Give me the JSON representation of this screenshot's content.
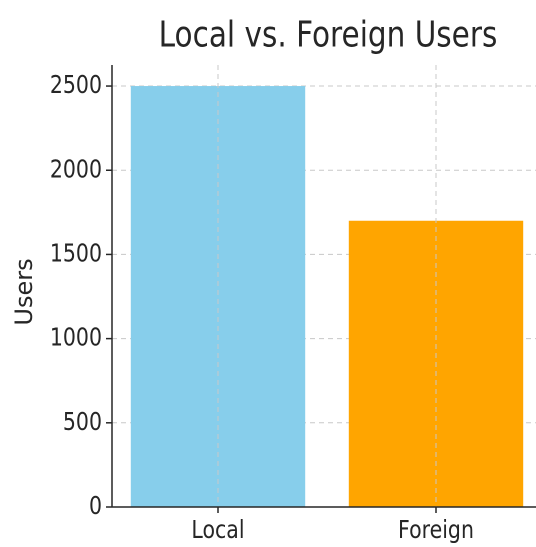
{
  "chart_data": {
    "type": "bar",
    "title": "Local vs. Foreign Users",
    "ylabel": "Users",
    "categories": [
      "Local",
      "Foreign"
    ],
    "values": [
      2500,
      1700
    ],
    "colors": [
      "#87ceeb",
      "#ffa500"
    ],
    "ylim": [
      0,
      2625
    ],
    "yticks": [
      0,
      500,
      1000,
      1500,
      2000,
      2500
    ],
    "grid": true
  }
}
